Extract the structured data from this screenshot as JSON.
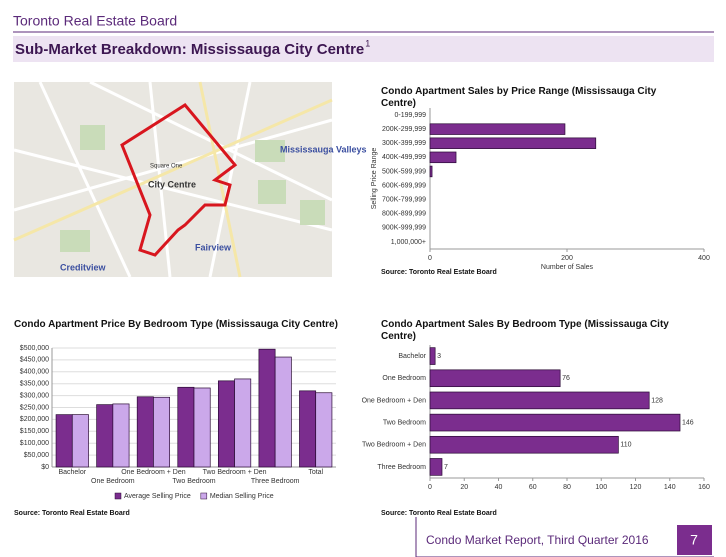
{
  "header": {
    "org": "Toronto Real Estate Board",
    "title": "Sub-Market Breakdown: Mississauga City Centre",
    "footnote": "1"
  },
  "map": {
    "labels": [
      "Square One",
      "City Centre",
      "Mississauga Valleys",
      "Fairview",
      "Creditview"
    ]
  },
  "charts": [
    {
      "type": "hbar",
      "title": "Condo Apartment Sales by Price Range (Mississauga City Centre)",
      "xlabel": "Number of Sales",
      "ylabel": "Selling Price Range",
      "categories": [
        "0-199,999",
        "200K-299,999",
        "300K-399,999",
        "400K-499,999",
        "500K-599,999",
        "600K-699,999",
        "700K-799,999",
        "800K-899,999",
        "900K-999,999",
        "1,000,000+"
      ],
      "values": [
        0,
        197,
        242,
        38,
        3,
        0,
        0,
        0,
        0,
        0
      ],
      "color": "#7b2d8e",
      "xlim": [
        0,
        400
      ],
      "xticks": [
        0,
        200,
        400
      ],
      "source": "Source: Toronto Real Estate Board"
    },
    {
      "type": "grouped_bar",
      "title": "Condo Apartment Price By Bedroom Type (Mississauga City Centre)",
      "categories": [
        "Bachelor",
        "One Bedroom",
        "One Bedroom + Den",
        "Two Bedroom",
        "Two Bedroom + Den",
        "Three Bedroom",
        "Total"
      ],
      "series": [
        {
          "name": "Average Selling Price",
          "color": "#7b2d8e",
          "values": [
            220000,
            262000,
            295000,
            335000,
            362000,
            495000,
            320000
          ]
        },
        {
          "name": "Median Selling Price",
          "color": "#cba8ea",
          "values": [
            220000,
            265000,
            293000,
            332000,
            370000,
            462000,
            312000
          ]
        }
      ],
      "ylim": [
        0,
        500000
      ],
      "yticks": [
        {
          "value": 0,
          "label": "$0"
        },
        {
          "value": 50000,
          "label": "$50,000"
        },
        {
          "value": 100000,
          "label": "$100,000"
        },
        {
          "value": 150000,
          "label": "$150,000"
        },
        {
          "value": 200000,
          "label": "$200,000"
        },
        {
          "value": 250000,
          "label": "$250,000"
        },
        {
          "value": 300000,
          "label": "$300,000"
        },
        {
          "value": 350000,
          "label": "$350,000"
        },
        {
          "value": 400000,
          "label": "$400,000"
        },
        {
          "value": 450000,
          "label": "$450,000"
        },
        {
          "value": 500000,
          "label": "$500,000"
        }
      ],
      "grid": true,
      "legend": "bottom",
      "source": "Source: Toronto Real Estate Board"
    },
    {
      "type": "hbar",
      "title": "Condo Apartment Sales By Bedroom Type (Mississauga City Centre)",
      "categories": [
        "Bachelor",
        "One Bedroom",
        "One Bedroom + Den",
        "Two Bedroom",
        "Two Bedroom + Den",
        "Three Bedroom"
      ],
      "values": [
        3,
        76,
        128,
        146,
        110,
        7
      ],
      "color": "#7b2d8e",
      "show_values": true,
      "xlim": [
        0,
        160
      ],
      "xticks": [
        0,
        20,
        40,
        60,
        80,
        100,
        120,
        140,
        160
      ],
      "source": "Source: Toronto Real Estate Board"
    }
  ],
  "footer": {
    "report": "Condo Market Report, Third Quarter 2016",
    "page": 7
  }
}
